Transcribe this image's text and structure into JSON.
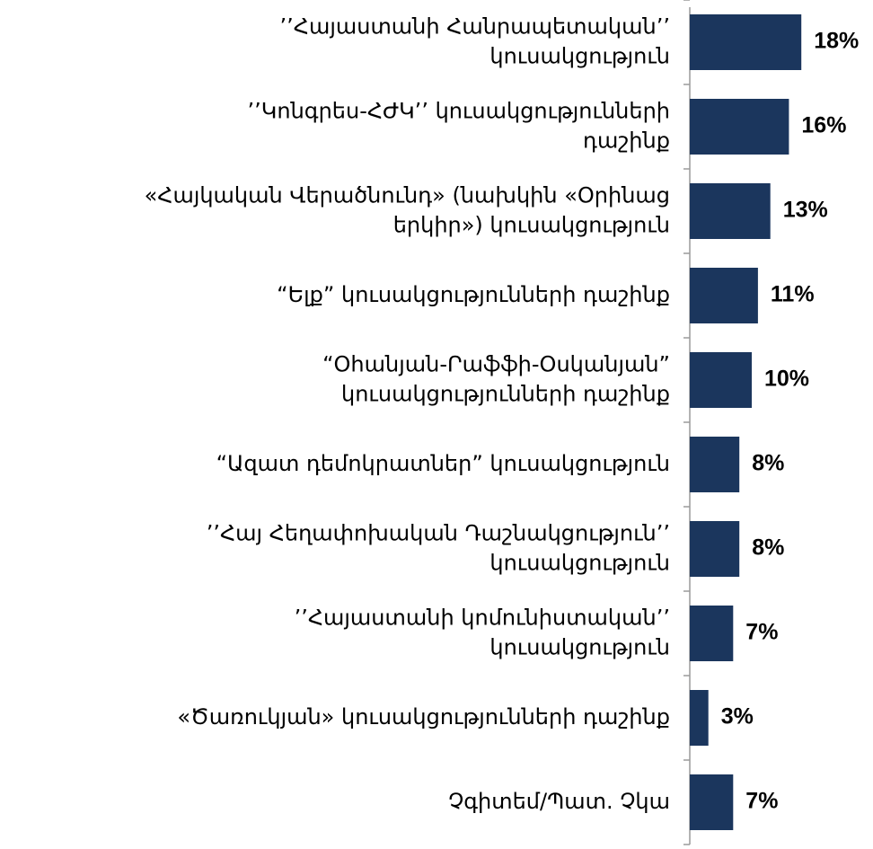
{
  "chart_data": {
    "type": "bar",
    "orientation": "horizontal",
    "categories": [
      [
        "’’Հայաստանի Հանրապետական’’",
        "կուսակցություն"
      ],
      [
        "’’Կոնգրես-ՀԺԿ’’  կուսակցությունների",
        "դաշինք"
      ],
      [
        "«Հայկական Վերածնունդ» (նախկին «Օրինաց",
        "երկիր») կուսակցություն"
      ],
      [
        "“Ելք”  կուսակցությունների դաշինք"
      ],
      [
        "“Օհանյան-Րաֆֆի-Օսկանյան”",
        "կուսակցությունների դաշինք"
      ],
      [
        "“Ազատ դեմոկրատներ” կուսակցություն"
      ],
      [
        "’’Հայ Հեղափոխական Դաշնակցություն’’",
        "կուսակցություն"
      ],
      [
        "’’Հայաստանի կոմունիստական’’",
        "կուսակցություն"
      ],
      [
        "«Ծառուկյան»  կուսակցությունների դաշինք"
      ],
      [
        "Չգիտեմ/Պատ. Չկա"
      ]
    ],
    "values": [
      18,
      16,
      13,
      11,
      10,
      8,
      8,
      7,
      3,
      7
    ],
    "value_labels": [
      "18%",
      "16%",
      "13%",
      "11%",
      "10%",
      "8%",
      "8%",
      "7%",
      "3%",
      "7%"
    ],
    "unit": "%",
    "bar_color": "#1b365d",
    "axis_color": "#9a9a9a",
    "grid": false,
    "legend": "none"
  }
}
